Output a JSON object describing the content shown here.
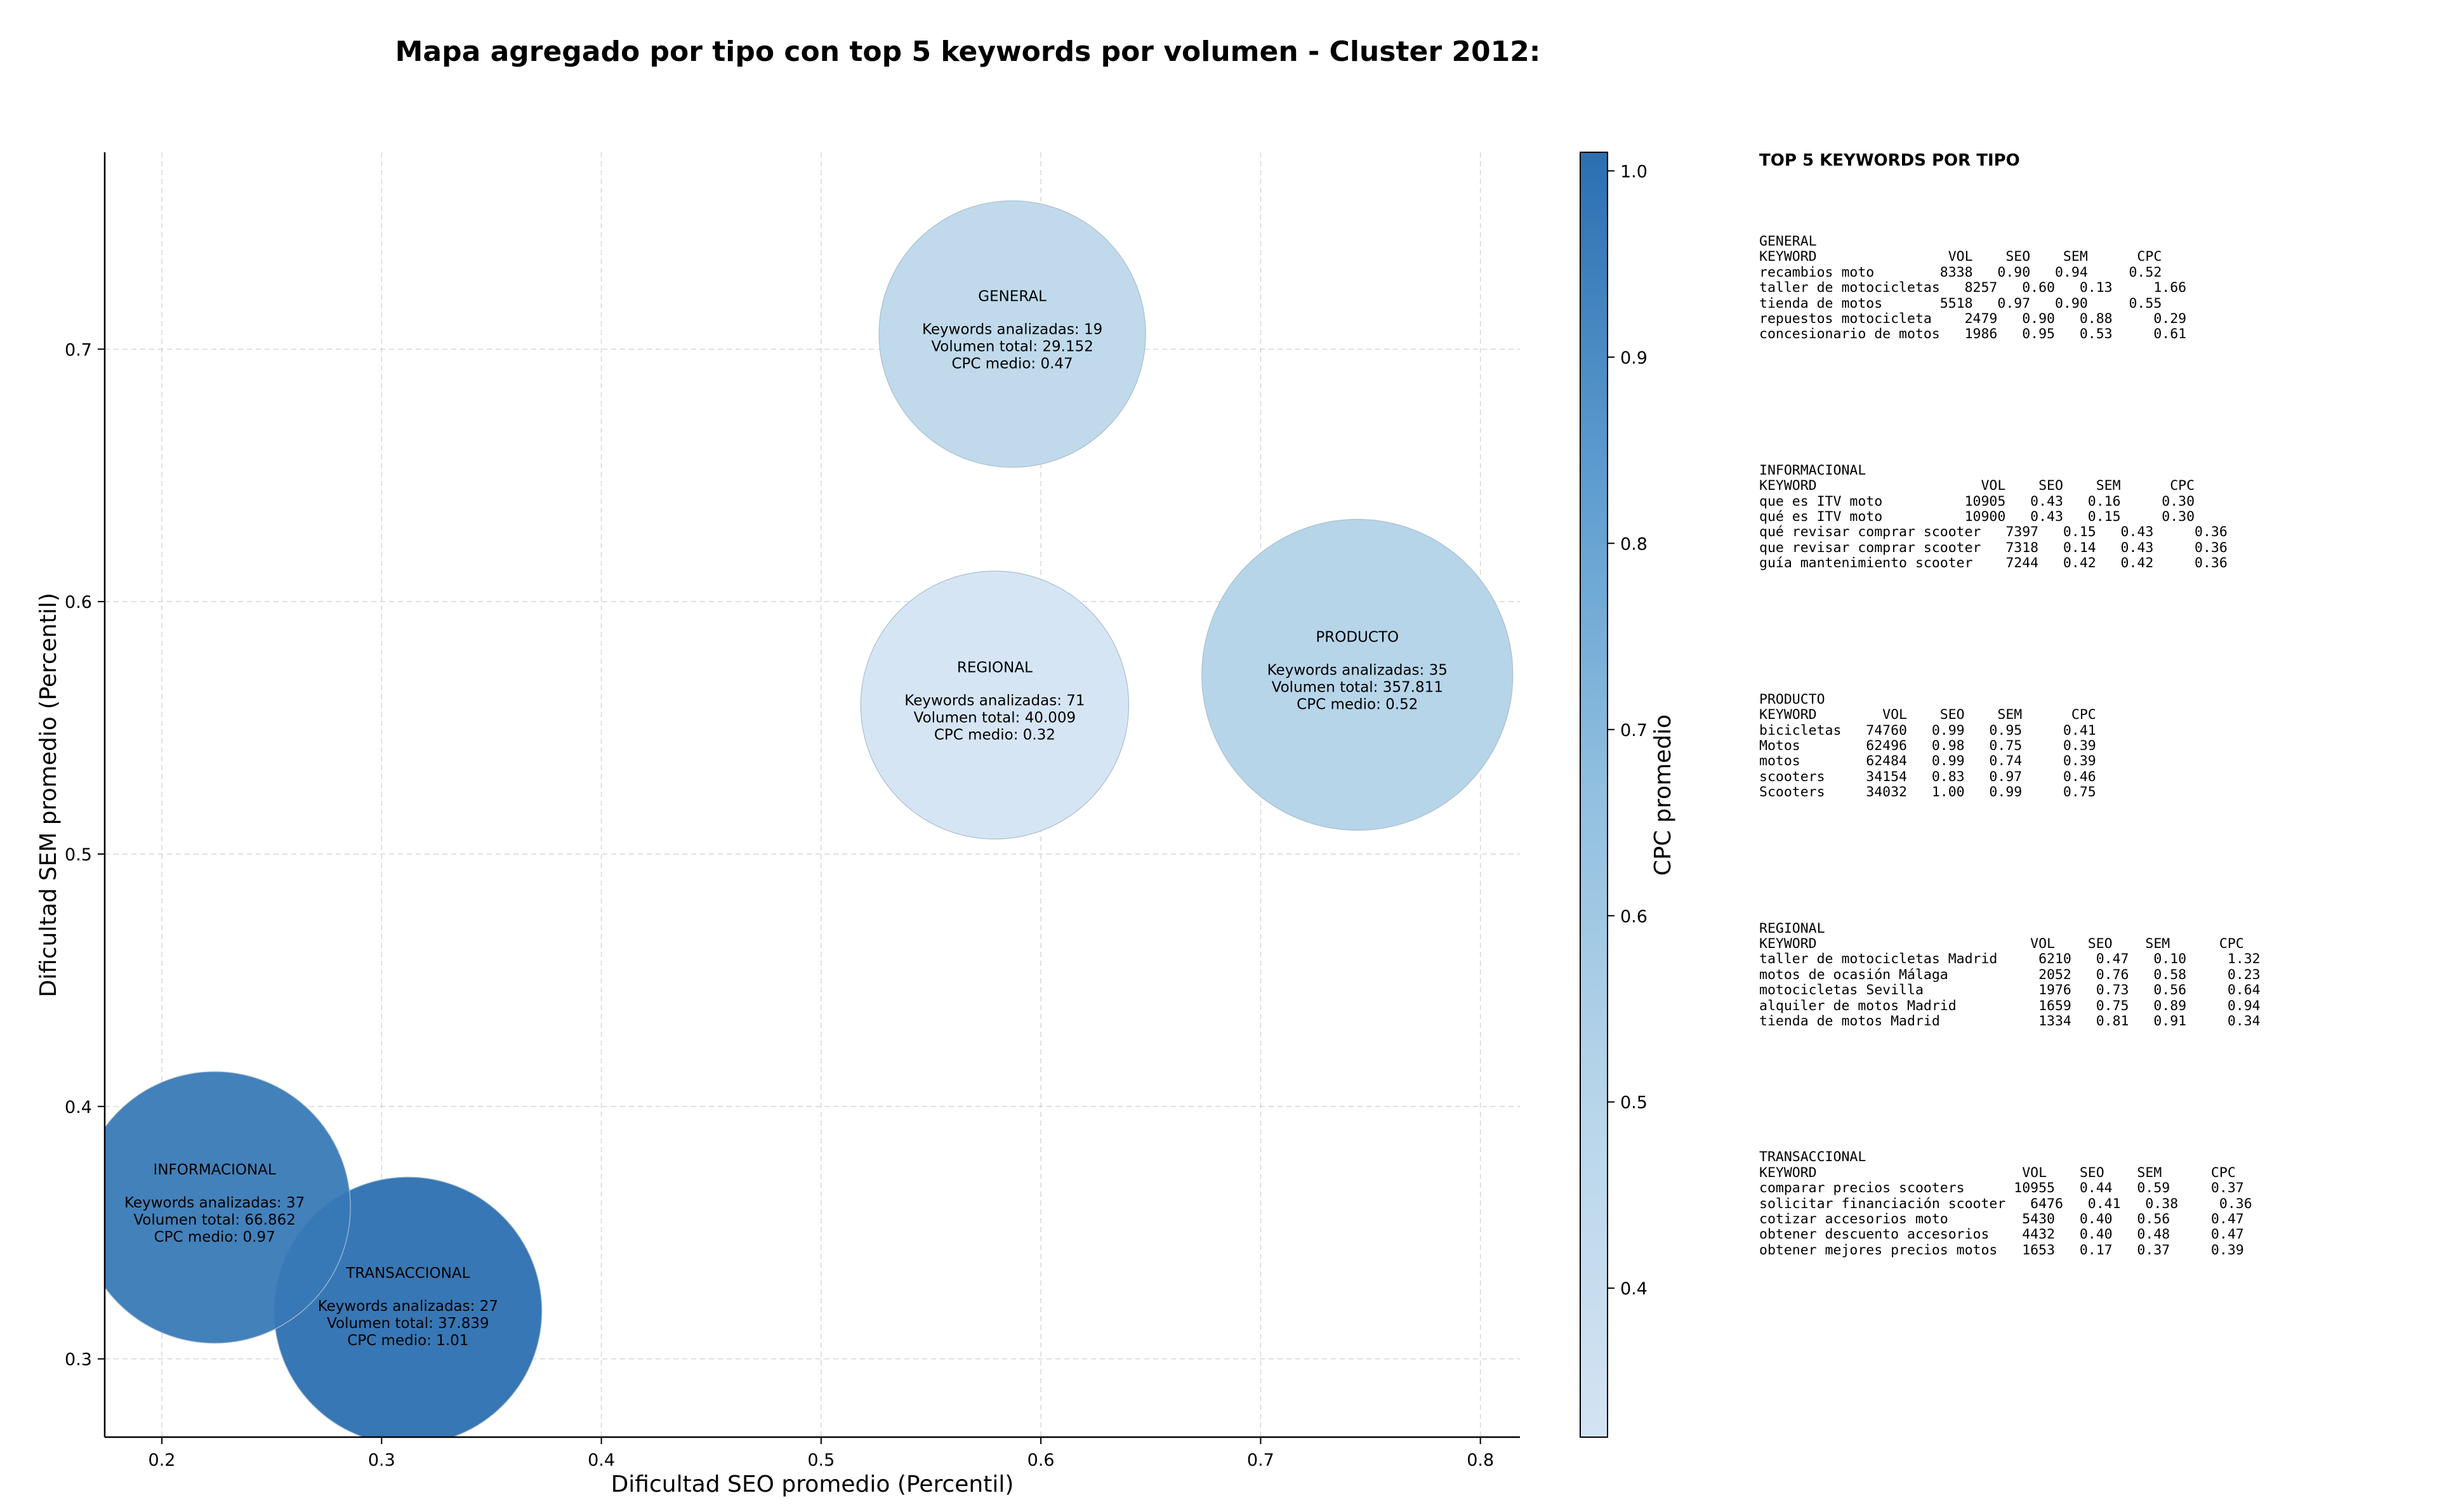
{
  "chart_data": {
    "type": "scatter",
    "title": "Mapa agregado por tipo con top 5 keywords por volumen - Cluster 2012:",
    "xlabel": "Dificultad SEO promedio (Percentil)",
    "ylabel": "Dificultad SEM promedio (Percentil)",
    "xlim": [
      0.174,
      0.818
    ],
    "ylim": [
      0.269,
      0.778
    ],
    "xticks": [
      "0.2",
      "0.3",
      "0.4",
      "0.5",
      "0.6",
      "0.7",
      "0.8"
    ],
    "yticks": [
      "0.3",
      "0.4",
      "0.5",
      "0.6",
      "0.7"
    ],
    "grid": true,
    "size_encoding": "keywords_analizadas",
    "color_encoding": "cpc_medio",
    "colorbar": {
      "label": "CPC promedio",
      "range": [
        0.32,
        1.01
      ],
      "ticks": [
        "0.4",
        "0.5",
        "0.6",
        "0.7",
        "0.8",
        "0.9",
        "1.0"
      ],
      "color_low": "#d3e3f3",
      "color_high": "#2b6fb0"
    },
    "points": [
      {
        "label": "GENERAL",
        "x": 0.587,
        "y": 0.706,
        "keywords_line": "Keywords analizadas: 19",
        "volume_line": "Volumen total: 29.152",
        "cpc_line": "CPC medio: 0.47",
        "keywords": 19,
        "volume": 29152,
        "cpc": 0.47
      },
      {
        "label": "REGIONAL",
        "x": 0.579,
        "y": 0.559,
        "keywords_line": "Keywords analizadas: 71",
        "volume_line": "Volumen total: 40.009",
        "cpc_line": "CPC medio: 0.32",
        "keywords": 71,
        "volume": 40009,
        "cpc": 0.32
      },
      {
        "label": "PRODUCTO",
        "x": 0.744,
        "y": 0.571,
        "keywords_line": "Keywords analizadas: 35",
        "volume_line": "Volumen total: 357.811",
        "cpc_line": "CPC medio: 0.52",
        "keywords": 35,
        "volume": 357811,
        "cpc": 0.52
      },
      {
        "label": "INFORMACIONAL",
        "x": 0.224,
        "y": 0.36,
        "keywords_line": "Keywords analizadas: 37",
        "volume_line": "Volumen total: 66.862",
        "cpc_line": "CPC medio: 0.97",
        "keywords": 37,
        "volume": 66862,
        "cpc": 0.97
      },
      {
        "label": "TRANSACCIONAL",
        "x": 0.312,
        "y": 0.319,
        "keywords_line": "Keywords analizadas: 27",
        "volume_line": "Volumen total: 37.839",
        "cpc_line": "CPC medio: 1.01",
        "keywords": 27,
        "volume": 37839,
        "cpc": 1.01
      }
    ],
    "side_table": {
      "title": "TOP 5 KEYWORDS POR TIPO",
      "blocks": [
        {
          "name": "GENERAL",
          "lines": [
            "GENERAL",
            "KEYWORD                VOL    SEO    SEM      CPC",
            "recambios moto        8338   0.90   0.94     0.52",
            "taller de motocicletas   8257   0.60   0.13     1.66",
            "tienda de motos       5518   0.97   0.90     0.55",
            "repuestos motocicleta    2479   0.90   0.88     0.29",
            "concesionario de motos   1986   0.95   0.53     0.61"
          ]
        },
        {
          "name": "INFORMACIONAL",
          "lines": [
            "INFORMACIONAL",
            "KEYWORD                    VOL    SEO    SEM      CPC",
            "que es ITV moto          10905   0.43   0.16     0.30",
            "qué es ITV moto          10900   0.43   0.15     0.30",
            "qué revisar comprar scooter   7397   0.15   0.43     0.36",
            "que revisar comprar scooter   7318   0.14   0.43     0.36",
            "guía mantenimiento scooter    7244   0.42   0.42     0.36"
          ]
        },
        {
          "name": "PRODUCTO",
          "lines": [
            "PRODUCTO",
            "KEYWORD        VOL    SEO    SEM      CPC",
            "bicicletas   74760   0.99   0.95     0.41",
            "Motos        62496   0.98   0.75     0.39",
            "motos        62484   0.99   0.74     0.39",
            "scooters     34154   0.83   0.97     0.46",
            "Scooters     34032   1.00   0.99     0.75"
          ]
        },
        {
          "name": "REGIONAL",
          "lines": [
            "REGIONAL",
            "KEYWORD                          VOL    SEO    SEM      CPC",
            "taller de motocicletas Madrid     6210   0.47   0.10     1.32",
            "motos de ocasión Málaga           2052   0.76   0.58     0.23",
            "motocicletas Sevilla              1976   0.73   0.56     0.64",
            "alquiler de motos Madrid          1659   0.75   0.89     0.94",
            "tienda de motos Madrid            1334   0.81   0.91     0.34"
          ]
        },
        {
          "name": "TRANSACCIONAL",
          "lines": [
            "TRANSACCIONAL",
            "KEYWORD                         VOL    SEO    SEM      CPC",
            "comparar precios scooters      10955   0.44   0.59     0.37",
            "solicitar financiación scooter   6476   0.41   0.38     0.36",
            "cotizar accesorios moto         5430   0.40   0.56     0.47",
            "obtener descuento accesorios    4432   0.40   0.48     0.47",
            "obtener mejores precios motos   1653   0.17   0.37     0.39"
          ]
        }
      ]
    }
  }
}
